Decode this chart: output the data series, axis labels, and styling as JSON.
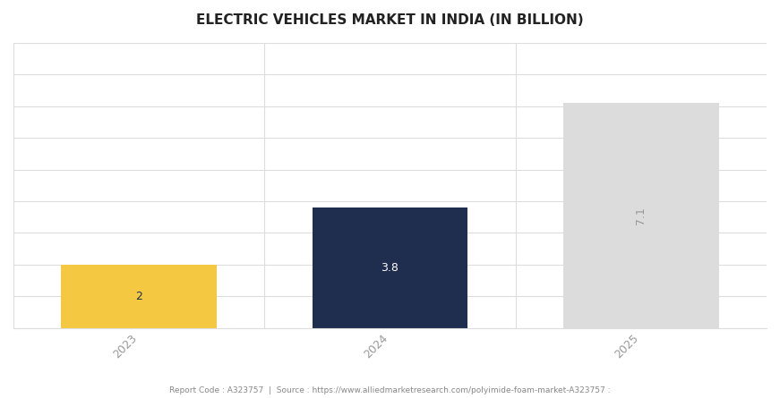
{
  "title": "ELECTRIC VEHICLES MARKET IN INDIA (IN BILLION)",
  "categories": [
    "2023",
    "2024",
    "2025"
  ],
  "values": [
    2,
    3.8,
    7.1
  ],
  "bar_colors": [
    "#F5C842",
    "#1F2D4E",
    "#DCDCDC"
  ],
  "label_colors": [
    "#1F2D4E",
    "#FFFFFF",
    "#999999"
  ],
  "bar_labels": [
    "2",
    "3.8",
    "7.1"
  ],
  "label_rotations": [
    0,
    0,
    90
  ],
  "bar_width": 0.62,
  "ylim": [
    0,
    9
  ],
  "yticks": [
    0,
    1,
    2,
    3,
    4,
    5,
    6,
    7,
    8,
    9
  ],
  "grid_color": "#DDDDDD",
  "background_color": "#FFFFFF",
  "plot_background": "#FFFFFF",
  "title_fontsize": 11,
  "tick_fontsize": 9,
  "label_fontsize": 9,
  "xlabel_rotation": 45,
  "footer_text": "Report Code : A323757  |  Source : https://www.alliedmarketresearch.com/polyimide-foam-market-A323757 :"
}
